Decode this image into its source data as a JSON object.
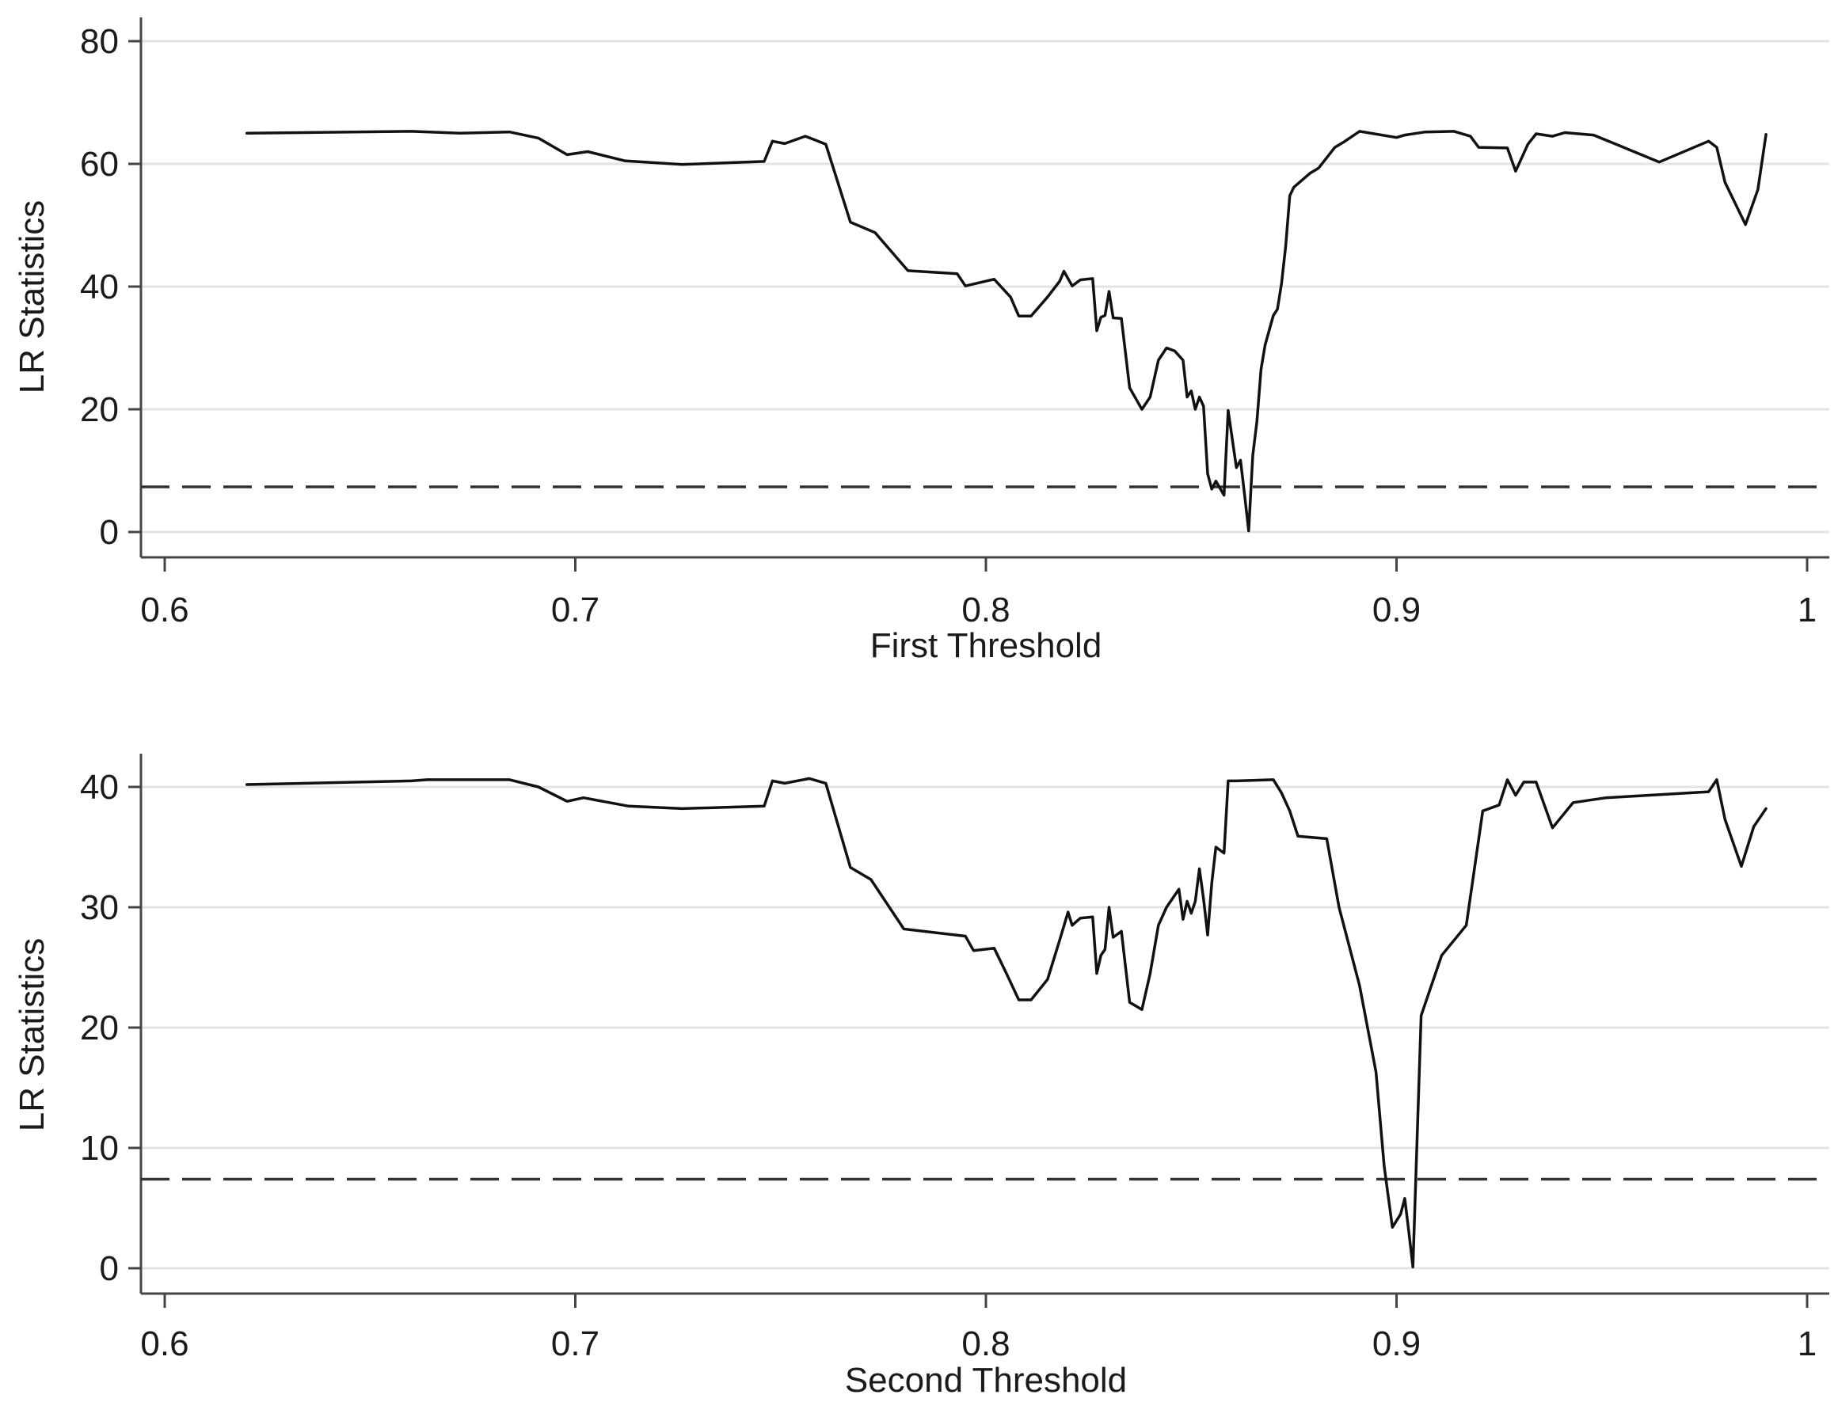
{
  "chart_data": [
    {
      "type": "line",
      "xlabel": "First Threshold",
      "ylabel": "LR Statistics",
      "xlim": [
        0.6,
        1.0
      ],
      "ylim": [
        0,
        80
      ],
      "xticks": [
        0.6,
        0.7,
        0.8,
        0.9,
        1.0
      ],
      "xtick_labels": [
        "0.6",
        "0.7",
        "0.8",
        "0.9",
        "1"
      ],
      "yticks": [
        0,
        20,
        40,
        60,
        80
      ],
      "ytick_labels": [
        "0",
        "20",
        "40",
        "60",
        "80"
      ],
      "grid": true,
      "critical_value": 7.35,
      "series": [
        {
          "x": [
            0.62,
            0.66,
            0.672,
            0.684,
            0.691,
            0.698,
            0.703,
            0.712,
            0.726,
            0.746,
            0.748,
            0.751,
            0.756,
            0.758,
            0.761,
            0.767,
            0.773,
            0.781,
            0.793,
            0.795,
            0.802,
            0.806,
            0.808,
            0.811,
            0.815,
            0.818,
            0.819,
            0.821,
            0.823,
            0.826,
            0.827,
            0.828,
            0.829,
            0.83,
            0.831,
            0.833,
            0.835,
            0.838,
            0.84,
            0.842,
            0.844,
            0.846,
            0.848,
            0.849,
            0.85,
            0.851,
            0.852,
            0.853,
            0.854,
            0.855,
            0.856,
            0.858,
            0.859,
            0.861,
            0.862,
            0.863,
            0.864,
            0.865,
            0.866,
            0.867,
            0.868,
            0.87,
            0.871,
            0.872,
            0.873,
            0.874,
            0.875,
            0.879,
            0.881,
            0.885,
            0.887,
            0.891,
            0.9,
            0.902,
            0.907,
            0.914,
            0.918,
            0.92,
            0.927,
            0.929,
            0.932,
            0.934,
            0.938,
            0.941,
            0.948,
            0.964,
            0.976,
            0.978,
            0.98,
            0.985,
            0.988,
            0.99
          ],
          "y": [
            65.0,
            65.3,
            65.0,
            65.2,
            64.2,
            61.5,
            62.0,
            60.5,
            59.9,
            60.4,
            63.7,
            63.3,
            64.5,
            64.0,
            63.2,
            50.5,
            48.8,
            42.6,
            42.1,
            40.1,
            41.2,
            38.3,
            35.2,
            35.2,
            38.3,
            40.9,
            42.5,
            40.1,
            41.1,
            41.3,
            32.8,
            35.0,
            35.3,
            39.2,
            34.9,
            34.8,
            23.5,
            20.0,
            22.0,
            28.0,
            30.0,
            29.5,
            28.0,
            22.0,
            23.0,
            20.0,
            22.0,
            20.5,
            9.5,
            7.0,
            8.3,
            6.0,
            19.8,
            10.5,
            11.7,
            6.0,
            0.2,
            12.5,
            18.0,
            26.5,
            30.5,
            35.3,
            36.3,
            40.5,
            46.5,
            54.8,
            56.2,
            58.5,
            59.3,
            62.7,
            63.5,
            65.3,
            64.3,
            64.7,
            65.2,
            65.3,
            64.5,
            62.7,
            62.6,
            58.8,
            63.2,
            64.9,
            64.5,
            65.1,
            64.7,
            60.3,
            63.7,
            62.7,
            57.0,
            50.1,
            55.8,
            64.8
          ]
        }
      ]
    },
    {
      "type": "line",
      "xlabel": "Second Threshold",
      "ylabel": "LR Statistics",
      "xlim": [
        0.6,
        1.0
      ],
      "ylim": [
        0,
        40
      ],
      "xticks": [
        0.6,
        0.7,
        0.8,
        0.9,
        1.0
      ],
      "xtick_labels": [
        "0.6",
        "0.7",
        "0.8",
        "0.9",
        "1"
      ],
      "yticks": [
        0,
        10,
        20,
        30,
        40
      ],
      "ytick_labels": [
        "0",
        "10",
        "20",
        "30",
        "40"
      ],
      "grid": true,
      "critical_value": 7.4,
      "series": [
        {
          "x": [
            0.62,
            0.66,
            0.664,
            0.684,
            0.691,
            0.698,
            0.702,
            0.713,
            0.726,
            0.746,
            0.748,
            0.751,
            0.757,
            0.759,
            0.761,
            0.767,
            0.772,
            0.78,
            0.795,
            0.797,
            0.802,
            0.805,
            0.808,
            0.811,
            0.815,
            0.818,
            0.82,
            0.821,
            0.823,
            0.826,
            0.827,
            0.828,
            0.829,
            0.83,
            0.831,
            0.833,
            0.835,
            0.838,
            0.84,
            0.842,
            0.844,
            0.845,
            0.847,
            0.848,
            0.849,
            0.85,
            0.851,
            0.852,
            0.853,
            0.854,
            0.855,
            0.856,
            0.858,
            0.859,
            0.861,
            0.87,
            0.872,
            0.874,
            0.876,
            0.883,
            0.886,
            0.891,
            0.895,
            0.897,
            0.899,
            0.901,
            0.902,
            0.903,
            0.904,
            0.906,
            0.911,
            0.917,
            0.921,
            0.925,
            0.927,
            0.929,
            0.931,
            0.934,
            0.938,
            0.943,
            0.951,
            0.976,
            0.978,
            0.98,
            0.984,
            0.987,
            0.99
          ],
          "y": [
            40.2,
            40.5,
            40.6,
            40.6,
            40.0,
            38.8,
            39.1,
            38.4,
            38.2,
            38.4,
            40.5,
            40.3,
            40.7,
            40.5,
            40.3,
            33.3,
            32.3,
            28.2,
            27.6,
            26.4,
            26.6,
            24.5,
            22.3,
            22.3,
            24.0,
            27.3,
            29.6,
            28.5,
            29.1,
            29.2,
            24.5,
            26.0,
            26.5,
            30.0,
            27.5,
            28.0,
            22.1,
            21.5,
            24.5,
            28.5,
            30.0,
            30.5,
            31.5,
            29.0,
            30.5,
            29.5,
            30.5,
            33.2,
            30.7,
            27.7,
            32.0,
            35.0,
            34.5,
            40.5,
            40.5,
            40.6,
            39.5,
            38.0,
            35.9,
            35.7,
            30.0,
            23.5,
            16.3,
            8.5,
            3.4,
            4.5,
            5.8,
            3.0,
            0.1,
            21.0,
            26.0,
            28.5,
            38.0,
            38.5,
            40.6,
            39.3,
            40.4,
            40.4,
            36.6,
            38.7,
            39.1,
            39.6,
            40.6,
            37.3,
            33.4,
            36.7,
            38.2
          ]
        }
      ]
    }
  ]
}
